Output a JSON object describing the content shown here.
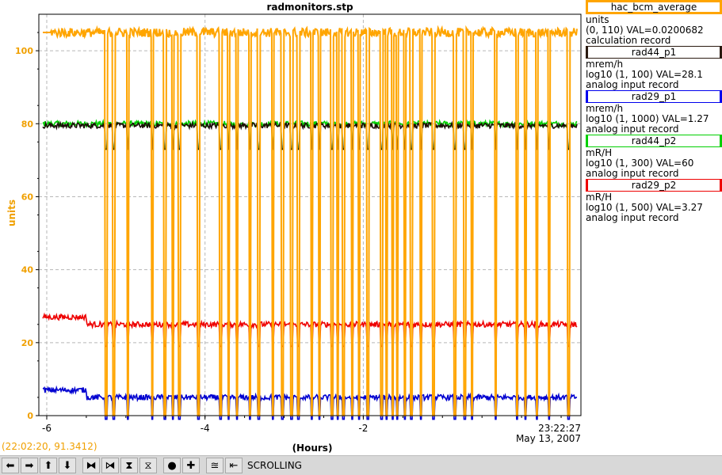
{
  "chart_data": {
    "type": "line",
    "title": "radmonitors.stp",
    "xlabel": "(Hours)",
    "ylabel": "units",
    "x_range": [
      -6.1,
      0.75
    ],
    "ylim": [
      0,
      110
    ],
    "x_ticks": [
      -6,
      -4,
      -2
    ],
    "y_ticks": [
      0,
      20,
      40,
      60,
      80,
      100
    ],
    "end_time": "23:22:27",
    "end_date": "May 13, 2007",
    "grid": true,
    "series": [
      {
        "name": "hac_bcm_average",
        "color": "#ffa500",
        "level": 105
      },
      {
        "name": "rad44_p1",
        "color": "#1c0e08",
        "level": 79.5
      },
      {
        "name": "rad29_p1",
        "color": "#0000d0",
        "level": 5
      },
      {
        "name": "rad44_p2",
        "color": "#00d000",
        "level": 80
      },
      {
        "name": "rad29_p2",
        "color": "#ee0000",
        "level": 25
      }
    ]
  },
  "legend": [
    {
      "name": "hac_bcm_average",
      "color": "#ffa500",
      "units": "units",
      "range": "(0, 110) VAL=0.0200682",
      "record": "calculation record"
    },
    {
      "name": "rad44_p1",
      "color": "#2a1a10",
      "units": "mrem/h",
      "range": "log10 (1, 100) VAL=28.1",
      "record": "analog input record"
    },
    {
      "name": "rad29_p1",
      "color": "#0000ee",
      "units": "mrem/h",
      "range": "log10 (1, 1000) VAL=1.27",
      "record": "analog input record"
    },
    {
      "name": "rad44_p2",
      "color": "#00d000",
      "units": "mR/H",
      "range": "log10 (1, 300) VAL=60",
      "record": "analog input record"
    },
    {
      "name": "rad29_p2",
      "color": "#ee0000",
      "units": "mR/H",
      "range": "log10 (1, 500) VAL=3.27",
      "record": "analog input record"
    }
  ],
  "cursor_readout": "(22:02:20, 91.3412)",
  "toolbar": {
    "buttons": [
      {
        "name": "scroll-left-button",
        "glyph": "⬅"
      },
      {
        "name": "scroll-right-button",
        "glyph": "➡"
      },
      {
        "name": "scroll-up-button",
        "glyph": "⬆"
      },
      {
        "name": "scroll-down-button",
        "glyph": "⬇"
      },
      {
        "name": "compress-x-button",
        "glyph": "⧓"
      },
      {
        "name": "expand-x-button",
        "glyph": "⧒"
      },
      {
        "name": "compress-y-button",
        "glyph": "⧗"
      },
      {
        "name": "expand-y-button",
        "glyph": "⧖"
      },
      {
        "name": "zoom-out-button",
        "glyph": "●"
      },
      {
        "name": "zoom-in-button",
        "glyph": "✚"
      },
      {
        "name": "autoscale-button",
        "glyph": "≊"
      },
      {
        "name": "scroll-mode-button",
        "glyph": "⇤"
      }
    ],
    "mode_label": "SCROLLING"
  }
}
